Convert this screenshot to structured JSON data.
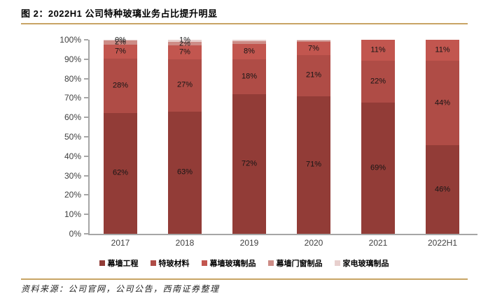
{
  "page": {
    "title": "图 2：2022H1 公司特种玻璃业务占比提升明显",
    "source": "资料来源：公司官网，公司公告，西南证券整理"
  },
  "colors": {
    "accent_rule": "#C8A464",
    "axis": "#A6A6A6",
    "tick_label": "#3F3F3F",
    "data_label": "#151515"
  },
  "chart_data": {
    "type": "bar",
    "stacked": true,
    "percent_stacked": true,
    "title": "2022H1 公司特种玻璃业务占比提升明显",
    "categories": [
      "2017",
      "2018",
      "2019",
      "2020",
      "2021",
      "2022H1"
    ],
    "series": [
      {
        "name": "幕墙工程",
        "color": "#923C37",
        "values": [
          62,
          63,
          72,
          71,
          69,
          46
        ],
        "labels": [
          "62%",
          "63%",
          "72%",
          "71%",
          "69%",
          "46%"
        ]
      },
      {
        "name": "特玻材料",
        "color": "#AF4C46",
        "values": [
          28,
          27,
          18,
          21,
          22,
          44
        ],
        "labels": [
          "28%",
          "27%",
          "18%",
          "21%",
          "22%",
          "44%"
        ]
      },
      {
        "name": "幕墙玻璃制品",
        "color": "#C2564F",
        "values": [
          7,
          7,
          8,
          7,
          11,
          11
        ],
        "labels": [
          "7%",
          "7%",
          "8%",
          "7%",
          "11%",
          "11%"
        ]
      },
      {
        "name": "幕墙门窗制品",
        "color": "#CD8C86",
        "values": [
          2,
          2,
          1.4,
          0.7,
          0,
          0
        ],
        "labels": [
          "2%",
          "2%",
          "",
          "",
          "",
          ""
        ]
      },
      {
        "name": "家电玻璃制品",
        "color": "#E8D0CE",
        "values": [
          0.5,
          1,
          0.6,
          0.3,
          0,
          0
        ],
        "labels": [
          "0%",
          "1%",
          "",
          "",
          "",
          ""
        ]
      }
    ],
    "yticks": [
      "0%",
      "10%",
      "20%",
      "30%",
      "40%",
      "50%",
      "60%",
      "70%",
      "80%",
      "90%",
      "100%"
    ],
    "ylim": [
      0,
      100
    ],
    "xlabel": "",
    "ylabel": "",
    "grid": false,
    "legend_position": "bottom"
  }
}
